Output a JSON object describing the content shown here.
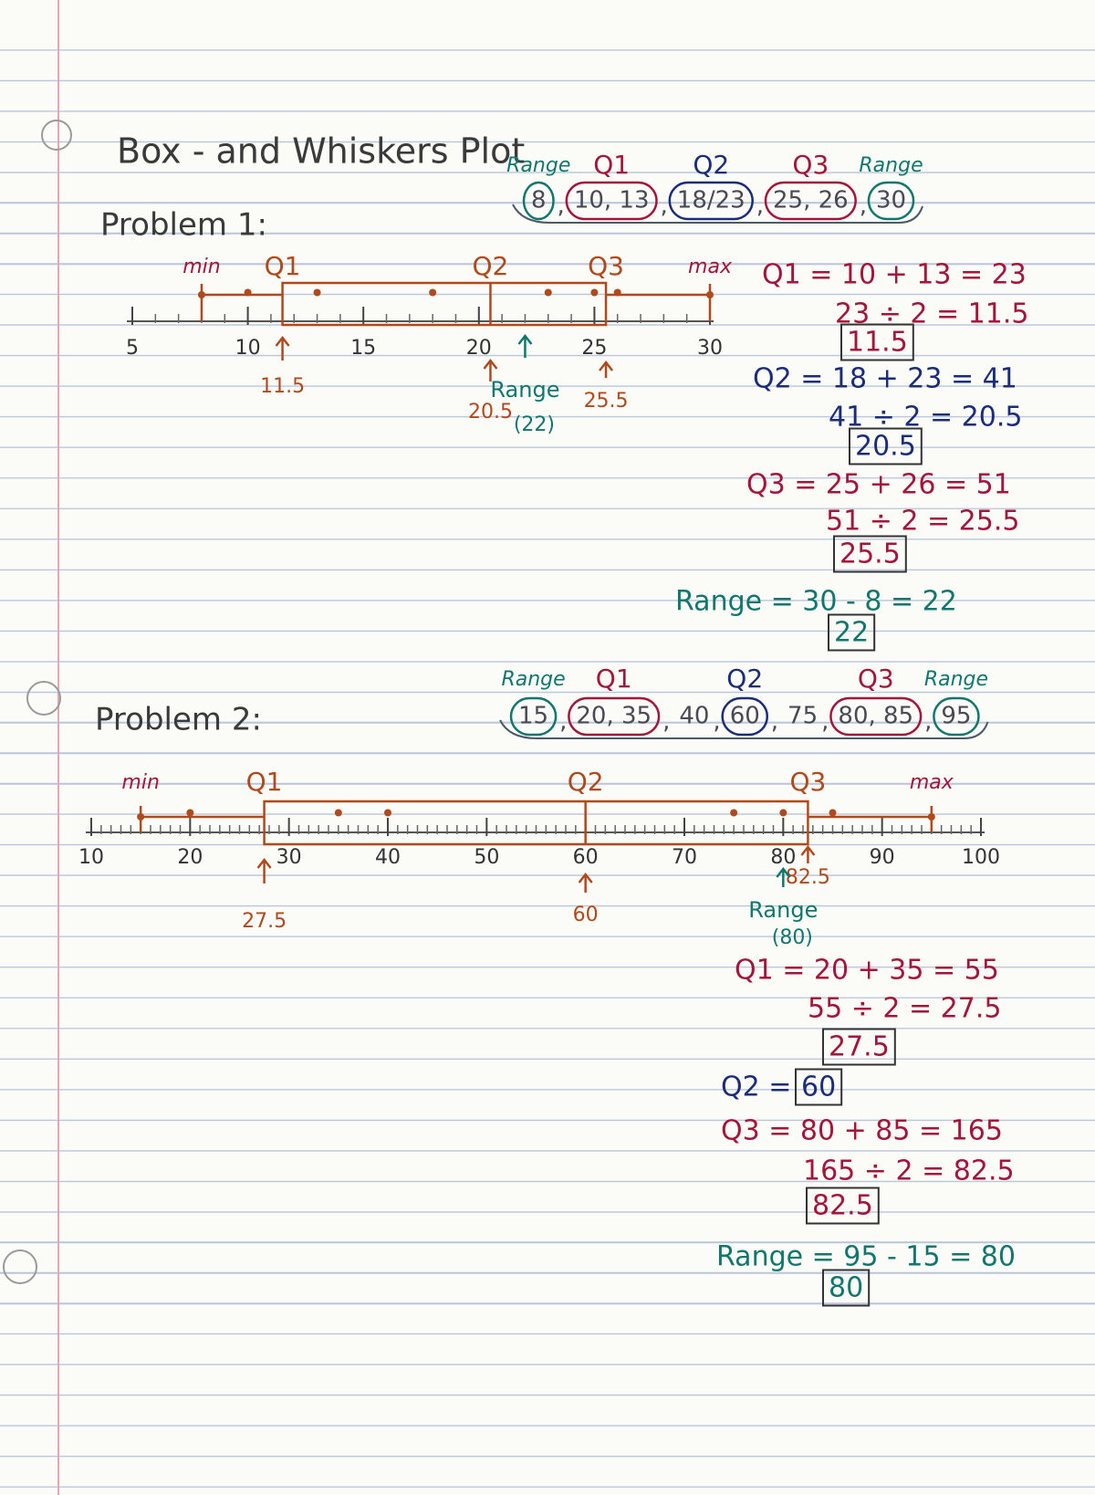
{
  "title": "Box - and Whiskers Plot",
  "problems": [
    {
      "label": "Problem 1:",
      "separator": ",",
      "data": [
        {
          "text": "8",
          "heading": "Range",
          "circle": "#11776d"
        },
        {
          "text": "10, 13",
          "heading": "Q1",
          "circle": "#a3153a"
        },
        {
          "text": "18/23",
          "heading": "Q2",
          "circle": "#1b2d7a"
        },
        {
          "text": "25, 26",
          "heading": "Q3",
          "circle": "#a3153a"
        },
        {
          "text": "30",
          "heading": "Range",
          "circle": "#11776d"
        }
      ],
      "plot": {
        "color": "#b04a1c",
        "xlim": [
          5,
          30
        ],
        "xticks": [
          5,
          10,
          15,
          20,
          25,
          30
        ],
        "minor_tick_step": 1,
        "min": 8,
        "q1": 11.5,
        "median": 20.5,
        "q3": 25.5,
        "max": 30,
        "points": [
          10,
          13,
          18,
          23,
          25,
          26
        ],
        "stat_labels": {
          "min": "min",
          "q1": "Q1",
          "median": "Q2",
          "q3": "Q3",
          "max": "max"
        },
        "range": {
          "title": "Range",
          "value": 22,
          "label": "(22)",
          "color": "#11776d"
        }
      },
      "calculations": [
        {
          "color": "#a3153a",
          "lines": [
            "Q1 = 10 + 13 = 23",
            "23 ÷ 2 = 11.5"
          ],
          "answer": "11.5"
        },
        {
          "color": "#1b2d7a",
          "lines": [
            "Q2 = 18 + 23 = 41",
            "41 ÷ 2 = 20.5"
          ],
          "answer": "20.5"
        },
        {
          "color": "#a3153a",
          "lines": [
            "Q3 = 25 + 26 = 51",
            "51 ÷ 2 = 25.5"
          ],
          "answer": "25.5"
        },
        {
          "color": "#11776d",
          "lines": [
            "Range = 30 - 8 = 22"
          ],
          "answer": "22"
        }
      ]
    },
    {
      "label": "Problem 2:",
      "separator": ",",
      "data": [
        {
          "text": "15",
          "heading": "Range",
          "circle": "#11776d"
        },
        {
          "text": "20, 35",
          "heading": "Q1",
          "circle": "#a3153a"
        },
        {
          "text": "40"
        },
        {
          "text": "60",
          "heading": "Q2",
          "circle": "#1b2d7a"
        },
        {
          "text": "75"
        },
        {
          "text": "80, 85",
          "heading": "Q3",
          "circle": "#a3153a"
        },
        {
          "text": "95",
          "heading": "Range",
          "circle": "#11776d"
        }
      ],
      "plot": {
        "color": "#b04a1c",
        "xlim": [
          10,
          100
        ],
        "xticks": [
          10,
          20,
          30,
          40,
          50,
          60,
          70,
          80,
          90,
          100
        ],
        "minor_tick_step": 1,
        "min": 15,
        "q1": 27.5,
        "median": 60,
        "q3": 82.5,
        "max": 95,
        "points": [
          20,
          35,
          40,
          75,
          80,
          85
        ],
        "stat_labels": {
          "min": "min",
          "q1": "Q1",
          "median": "Q2",
          "q3": "Q3",
          "max": "max"
        },
        "range": {
          "title": "Range",
          "value": 80,
          "label": "(80)",
          "color": "#11776d"
        }
      },
      "calculations": [
        {
          "color": "#a3153a",
          "lines": [
            "Q1 = 20 + 35 = 55",
            "55 ÷ 2 = 27.5"
          ],
          "answer": "27.5"
        },
        {
          "color": "#1b2d7a",
          "lines": [
            "Q2 ="
          ],
          "answer": "60"
        },
        {
          "color": "#a3153a",
          "lines": [
            "Q3 = 80 + 85 = 165",
            "165 ÷ 2 = 82.5"
          ],
          "answer": "82.5"
        },
        {
          "color": "#11776d",
          "lines": [
            "Range = 95 - 15 = 80"
          ],
          "answer": "80"
        }
      ]
    }
  ]
}
